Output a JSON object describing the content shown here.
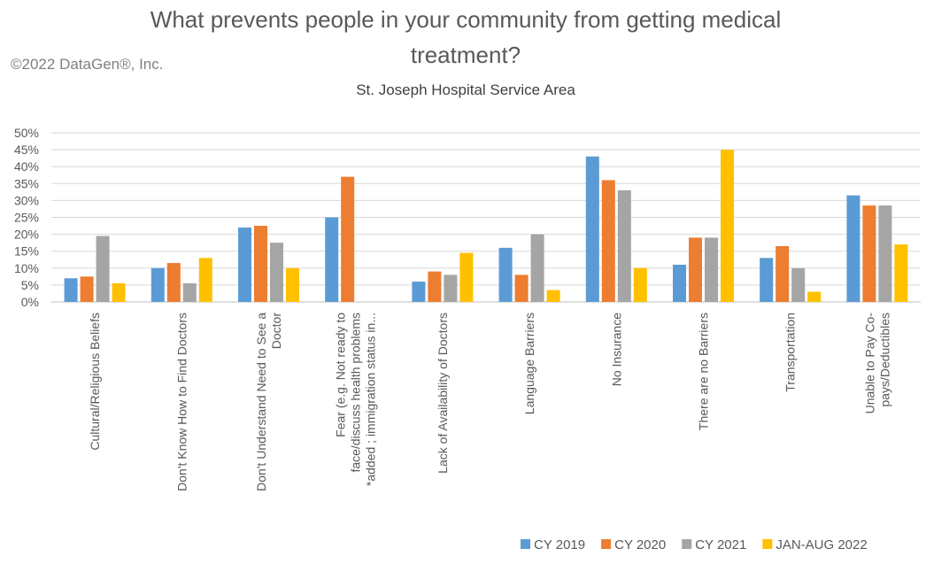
{
  "copyright": "©2022 DataGen®, Inc.",
  "chart_data": {
    "type": "bar",
    "title": "What prevents people in your community from getting medical treatment?",
    "title_lines": [
      "What prevents people in your community from getting medical",
      "treatment?"
    ],
    "subtitle": "St. Joseph Hospital Service Area",
    "xlabel": "",
    "ylabel": "",
    "ylim": [
      0,
      50
    ],
    "y_ticks": [
      "0%",
      "5%",
      "10%",
      "15%",
      "20%",
      "25%",
      "30%",
      "35%",
      "40%",
      "45%",
      "50%"
    ],
    "grid": true,
    "legend_position": "bottom-right",
    "categories": [
      "Cultural/Religious Beliefs",
      "Don't Know How to Find Doctors",
      "Don't Understand Need to See a Doctor",
      "Fear (e.g. Not ready to face/discuss health problems *added ; immigration status in...",
      "Lack of Availability of Doctors",
      "Language Barriers",
      "No Insurance",
      "There are no Barriers",
      "Transportation",
      "Unable to Pay Co-pays/Deductibles"
    ],
    "category_label_lines": [
      [
        "Cultural/Religious Beliefs"
      ],
      [
        "Don't Know How to Find Doctors"
      ],
      [
        "Don't Understand Need to See a",
        "Doctor"
      ],
      [
        "Fear (e.g. Not ready to",
        "face/discuss health problems",
        "*added ; immigration status in..."
      ],
      [
        "Lack of Availability of Doctors"
      ],
      [
        "Language Barriers"
      ],
      [
        "No Insurance"
      ],
      [
        "There are no Barriers"
      ],
      [
        "Transportation"
      ],
      [
        "Unable to Pay Co-",
        "pays/Deductibles"
      ]
    ],
    "series": [
      {
        "name": "CY 2019",
        "color": "#5B9BD5",
        "values": [
          7,
          10,
          22,
          25,
          6,
          16,
          43,
          11,
          13,
          31.5
        ]
      },
      {
        "name": "CY 2020",
        "color": "#ED7D31",
        "values": [
          7.5,
          11.5,
          22.5,
          37,
          9,
          8,
          36,
          19,
          16.5,
          28.5
        ]
      },
      {
        "name": "CY 2021",
        "color": "#A5A5A5",
        "values": [
          19.5,
          5.5,
          17.5,
          null,
          8,
          20,
          33,
          19,
          10,
          28.5
        ]
      },
      {
        "name": "JAN-AUG 2022",
        "color": "#FFC000",
        "values": [
          5.5,
          13,
          10,
          null,
          14.5,
          3.5,
          10,
          45,
          3,
          17
        ]
      }
    ]
  }
}
